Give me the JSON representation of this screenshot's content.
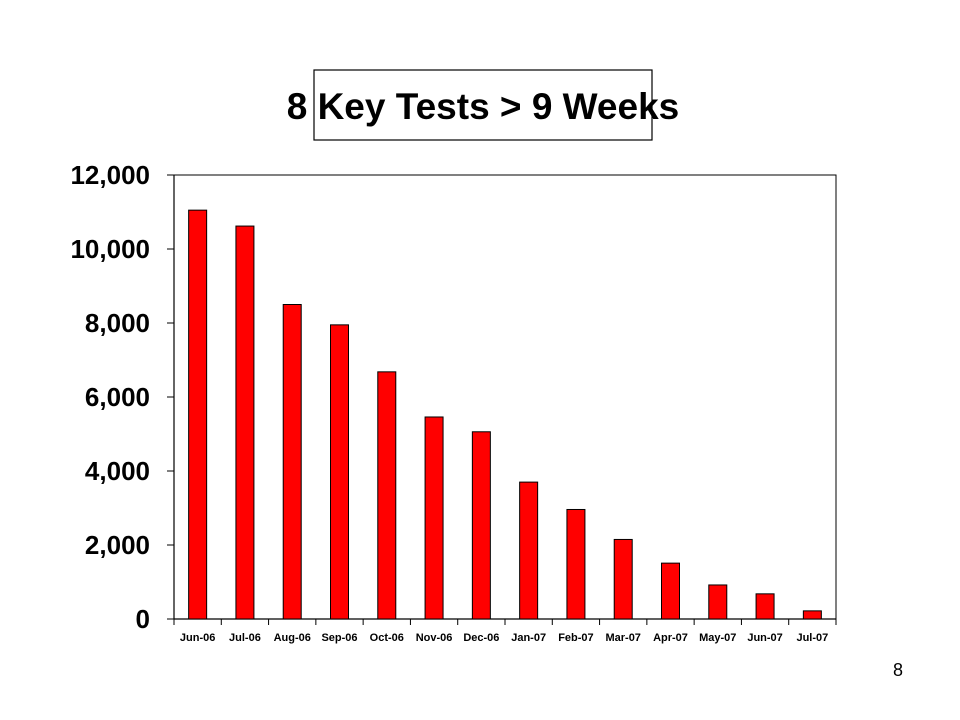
{
  "page": {
    "number": "8"
  },
  "colors": {
    "bar_fill": "#ff0000",
    "bar_stroke": "#000000",
    "background": "#ffffff"
  },
  "chart_data": {
    "type": "bar",
    "title": "8 Key Tests > 9 Weeks",
    "xlabel": "",
    "ylabel": "",
    "categories": [
      "Jun-06",
      "Jul-06",
      "Aug-06",
      "Sep-06",
      "Oct-06",
      "Nov-06",
      "Dec-06",
      "Jan-07",
      "Feb-07",
      "Mar-07",
      "Apr-07",
      "May-07",
      "Jun-07",
      "Jul-07"
    ],
    "values": [
      11050,
      10620,
      8500,
      7950,
      6680,
      5460,
      5060,
      3700,
      2960,
      2150,
      1510,
      920,
      680,
      220
    ],
    "ylim": [
      0,
      12000
    ],
    "yticks": [
      0,
      2000,
      4000,
      6000,
      8000,
      10000,
      12000
    ],
    "ytick_labels": [
      "0",
      "2,000",
      "4,000",
      "6,000",
      "8,000",
      "10,000",
      "12,000"
    ],
    "grid": false,
    "legend": "none"
  }
}
